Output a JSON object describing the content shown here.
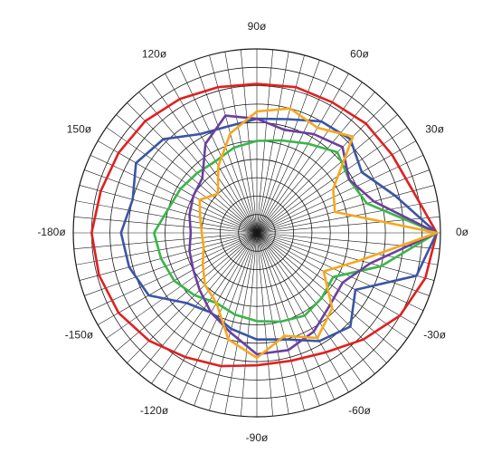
{
  "chart_data": {
    "type": "polar-line",
    "grid": true,
    "radial_rings": 10,
    "spoke_step_deg": 5,
    "angle_tick_labels": [
      {
        "angle": 0,
        "label": "0ø"
      },
      {
        "angle": 30,
        "label": "30ø"
      },
      {
        "angle": 60,
        "label": "60ø"
      },
      {
        "angle": 90,
        "label": "90ø"
      },
      {
        "angle": 120,
        "label": "120ø"
      },
      {
        "angle": 150,
        "label": "150ø"
      },
      {
        "angle": 180,
        "label": "-180ø"
      },
      {
        "angle": -150,
        "label": "-150ø"
      },
      {
        "angle": -120,
        "label": "-120ø"
      },
      {
        "angle": -90,
        "label": "-90ø"
      },
      {
        "angle": -60,
        "label": "-60ø"
      },
      {
        "angle": -30,
        "label": "-30ø"
      }
    ],
    "angles": [
      0,
      15,
      30,
      45,
      60,
      75,
      90,
      105,
      120,
      135,
      150,
      165,
      180,
      195,
      210,
      225,
      240,
      255,
      270,
      285,
      300,
      315,
      330,
      345
    ],
    "series": [
      {
        "color": "#e02020",
        "values": [
          0.98,
          0.88,
          0.85,
          0.84,
          0.82,
          0.82,
          0.81,
          0.82,
          0.84,
          0.86,
          0.87,
          0.88,
          0.9,
          0.89,
          0.87,
          0.83,
          0.78,
          0.75,
          0.72,
          0.72,
          0.75,
          0.82,
          0.9,
          0.95
        ]
      },
      {
        "color": "#3a55a5",
        "values": [
          0.98,
          0.78,
          0.66,
          0.72,
          0.7,
          0.64,
          0.62,
          0.6,
          0.62,
          0.72,
          0.76,
          0.7,
          0.74,
          0.72,
          0.68,
          0.54,
          0.5,
          0.54,
          0.58,
          0.6,
          0.68,
          0.72,
          0.62,
          0.9
        ]
      },
      {
        "color": "#3ab54a",
        "values": [
          0.98,
          0.62,
          0.58,
          0.62,
          0.56,
          0.52,
          0.5,
          0.48,
          0.45,
          0.46,
          0.48,
          0.5,
          0.56,
          0.54,
          0.52,
          0.48,
          0.44,
          0.46,
          0.48,
          0.5,
          0.52,
          0.5,
          0.48,
          0.7
        ]
      },
      {
        "color": "#6a3fa0",
        "values": [
          0.98,
          0.66,
          0.58,
          0.66,
          0.62,
          0.58,
          0.62,
          0.66,
          0.56,
          0.42,
          0.4,
          0.38,
          0.36,
          0.38,
          0.4,
          0.44,
          0.5,
          0.56,
          0.66,
          0.66,
          0.62,
          0.56,
          0.54,
          0.64
        ]
      },
      {
        "color": "#f7a81b",
        "values": [
          0.98,
          0.44,
          0.48,
          0.74,
          0.66,
          0.7,
          0.66,
          0.56,
          0.42,
          0.3,
          0.36,
          0.32,
          0.3,
          0.3,
          0.34,
          0.4,
          0.44,
          0.6,
          0.68,
          0.58,
          0.66,
          0.58,
          0.42,
          0.58
        ]
      }
    ]
  }
}
